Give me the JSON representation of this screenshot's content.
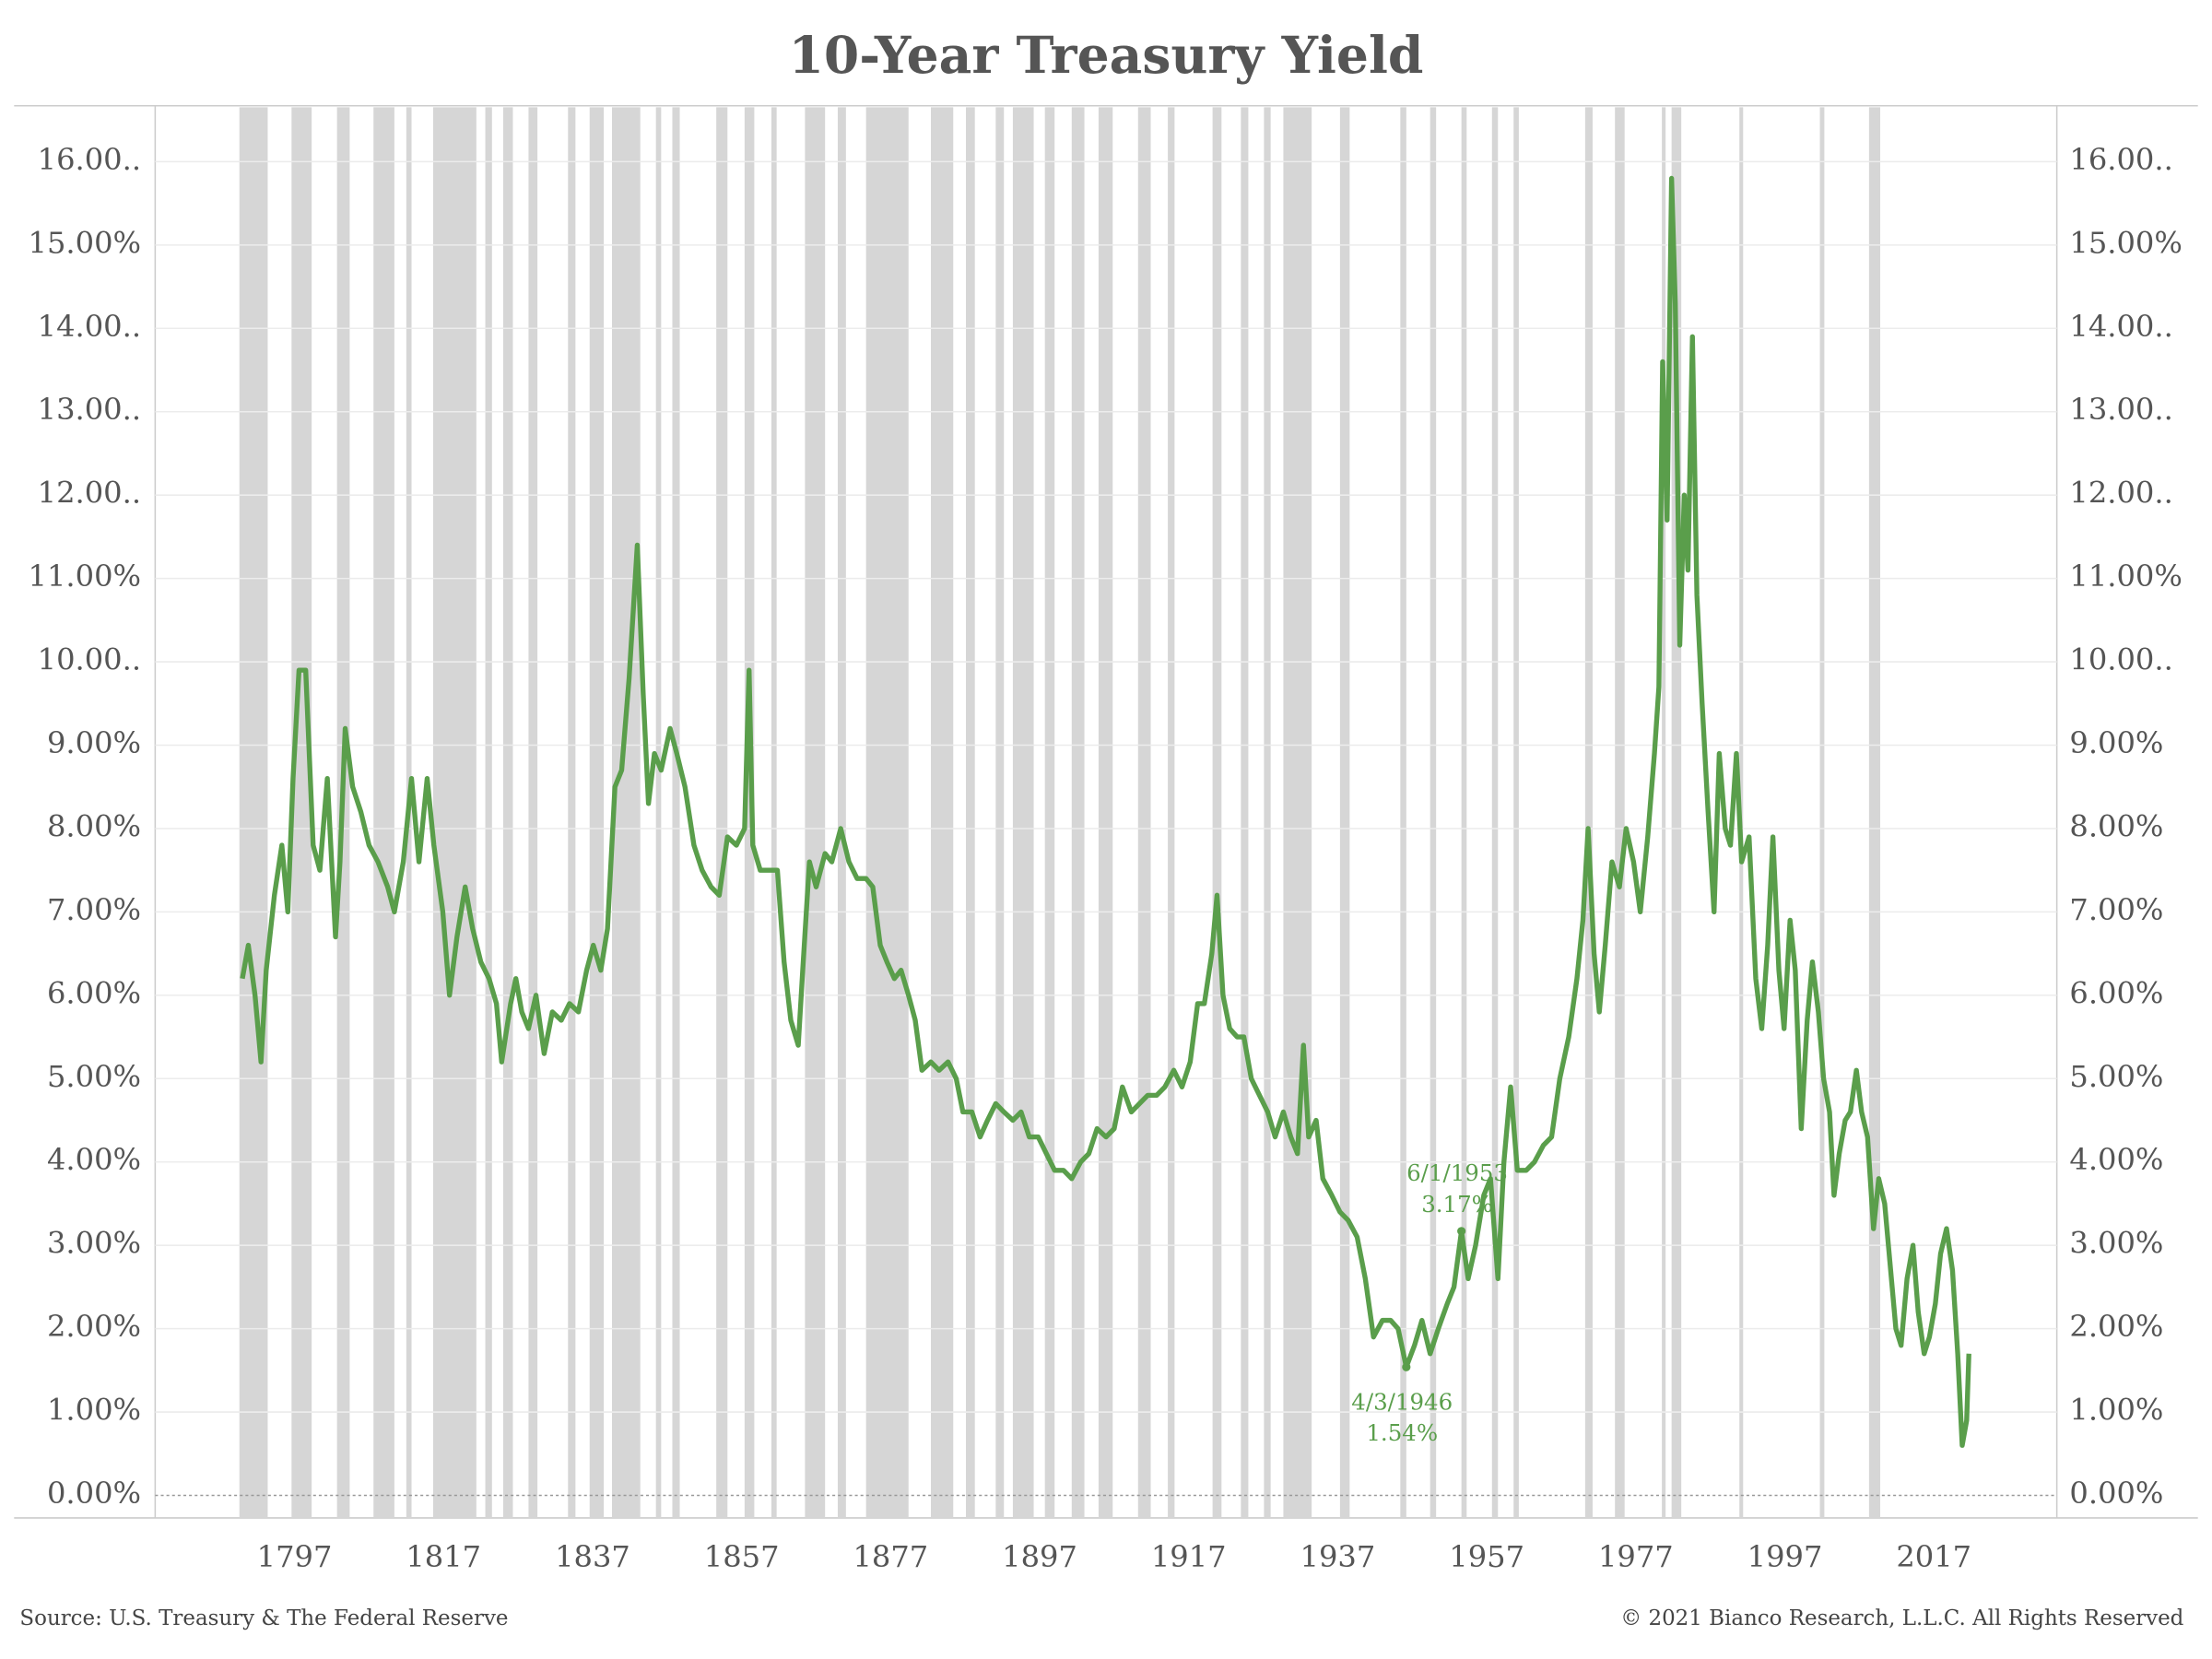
{
  "chart_data": {
    "type": "line",
    "title": "10-Year Treasury Yield",
    "source": "Source: U.S. Treasury & The Federal Reserve",
    "copyright": "© 2021 Bianco Research, L.L.C. All Rights Reserved",
    "color": "#5a9e4b",
    "band_color": "#d6d6d6",
    "xlim": [
      1778.3,
      2033.5
    ],
    "xticks": [
      1797,
      1817,
      1837,
      1857,
      1877,
      1897,
      1917,
      1937,
      1957,
      1977,
      1997,
      2017
    ],
    "ylim": [
      -0.27,
      16.67
    ],
    "yticks": [
      {
        "value": 0,
        "label": "0.00%"
      },
      {
        "value": 1,
        "label": "1.00%"
      },
      {
        "value": 2,
        "label": "2.00%"
      },
      {
        "value": 3,
        "label": "3.00%"
      },
      {
        "value": 4,
        "label": "4.00%"
      },
      {
        "value": 5,
        "label": "5.00%"
      },
      {
        "value": 6,
        "label": "6.00%"
      },
      {
        "value": 7,
        "label": "7.00%"
      },
      {
        "value": 8,
        "label": "8.00%"
      },
      {
        "value": 9,
        "label": "9.00%"
      },
      {
        "value": 10,
        "label": "10.00.."
      },
      {
        "value": 11,
        "label": "11.00%"
      },
      {
        "value": 12,
        "label": "12.00.."
      },
      {
        "value": 13,
        "label": "13.00.."
      },
      {
        "value": 14,
        "label": "14.00.."
      },
      {
        "value": 15,
        "label": "15.00%"
      },
      {
        "value": 16,
        "label": "16.00.."
      }
    ],
    "y2lim": [
      -0.27,
      16.67
    ],
    "y2ticks": [
      {
        "value": 0,
        "label": "0.00%"
      },
      {
        "value": 1,
        "label": "1.00%"
      },
      {
        "value": 2,
        "label": "2.00%"
      },
      {
        "value": 3,
        "label": "3.00%"
      },
      {
        "value": 4,
        "label": "4.00%"
      },
      {
        "value": 5,
        "label": "5.00%"
      },
      {
        "value": 6,
        "label": "6.00%"
      },
      {
        "value": 7,
        "label": "7.00%"
      },
      {
        "value": 8,
        "label": "8.00%"
      },
      {
        "value": 9,
        "label": "9.00%"
      },
      {
        "value": 10,
        "label": "10.00.."
      },
      {
        "value": 11,
        "label": "11.00%"
      },
      {
        "value": 12,
        "label": "12.00.."
      },
      {
        "value": 13,
        "label": "13.00.."
      },
      {
        "value": 14,
        "label": "14.00.."
      },
      {
        "value": 15,
        "label": "15.00%"
      },
      {
        "value": 16,
        "label": "16.00.."
      }
    ],
    "grid": true,
    "recessions": [
      [
        1789.6,
        1793.4
      ],
      [
        1796.6,
        1799.3
      ],
      [
        1802.7,
        1804.4
      ],
      [
        1807.6,
        1810.4
      ],
      [
        1812,
        1812.7
      ],
      [
        1815.6,
        1821.4
      ],
      [
        1822.6,
        1823.5
      ],
      [
        1825,
        1826.3
      ],
      [
        1828.4,
        1829.6
      ],
      [
        1833.7,
        1834.7
      ],
      [
        1836.6,
        1838.5
      ],
      [
        1839.6,
        1843.4
      ],
      [
        1845.5,
        1846.2
      ],
      [
        1847.7,
        1848.7
      ],
      [
        1853.6,
        1855.1
      ],
      [
        1857.4,
        1858.7
      ],
      [
        1861,
        1861.7
      ],
      [
        1865.5,
        1868.2
      ],
      [
        1869.9,
        1871
      ],
      [
        1873.7,
        1879.4
      ],
      [
        1882.4,
        1885.4
      ],
      [
        1887.1,
        1888.3
      ],
      [
        1891.1,
        1892.2
      ],
      [
        1893.4,
        1896.2
      ],
      [
        1897.7,
        1899
      ],
      [
        1901.3,
        1903
      ],
      [
        1904.9,
        1906.8
      ],
      [
        1910.2,
        1911.9
      ],
      [
        1914.2,
        1915.1
      ],
      [
        1920.2,
        1921.4
      ],
      [
        1924,
        1925
      ],
      [
        1927.1,
        1928
      ],
      [
        1929.7,
        1933.5
      ],
      [
        1937.3,
        1938.6
      ],
      [
        1945.4,
        1946.2
      ],
      [
        1949.4,
        1950.2
      ],
      [
        1953.6,
        1954.3
      ],
      [
        1957.7,
        1958.5
      ],
      [
        1960.6,
        1961.3
      ],
      [
        1970.2,
        1971.2
      ],
      [
        1974.2,
        1975.5
      ],
      [
        1980.5,
        1981
      ],
      [
        1981.8,
        1983.1
      ],
      [
        1990.9,
        1991.4
      ],
      [
        2001.7,
        2002.3
      ],
      [
        2008.3,
        2009.8
      ]
    ],
    "annotations": [
      {
        "label": "6/1/1953",
        "value_label": "3.17%",
        "x": 1953.6,
        "y": 3.17
      },
      {
        "label": "4/3/1946",
        "value_label": "1.54%",
        "x": 1946.2,
        "y": 1.54
      }
    ],
    "x": [
      1790.0,
      1790.8,
      1791.7,
      1792.5,
      1793.2,
      1794.3,
      1795.3,
      1796.1,
      1796.8,
      1797.6,
      1798.5,
      1799.5,
      1800.4,
      1801.4,
      1802.5,
      1803.1,
      1803.8,
      1804.8,
      1805.9,
      1807.0,
      1808.2,
      1809.5,
      1810.4,
      1811.6,
      1812.7,
      1813.7,
      1814.8,
      1815.7,
      1816.9,
      1817.8,
      1818.8,
      1819.9,
      1820.9,
      1822.0,
      1823.1,
      1824.1,
      1824.8,
      1826.0,
      1826.7,
      1827.5,
      1828.4,
      1829.4,
      1830.5,
      1831.6,
      1832.8,
      1833.9,
      1835.1,
      1836.2,
      1837.1,
      1838.1,
      1839.0,
      1840.0,
      1840.9,
      1841.9,
      1843.0,
      1843.8,
      1844.5,
      1845.3,
      1846.2,
      1847.4,
      1848.3,
      1849.4,
      1850.6,
      1851.7,
      1852.9,
      1854.0,
      1855.1,
      1856.3,
      1857.4,
      1858.0,
      1858.5,
      1859.5,
      1860.6,
      1861.8,
      1862.7,
      1863.6,
      1864.6,
      1865.2,
      1866.1,
      1867.0,
      1868.2,
      1869.1,
      1870.3,
      1871.4,
      1872.5,
      1873.7,
      1874.6,
      1875.6,
      1876.5,
      1877.5,
      1878.4,
      1879.4,
      1880.3,
      1881.2,
      1882.4,
      1883.5,
      1884.7,
      1885.8,
      1886.7,
      1887.9,
      1889.0,
      1890.0,
      1891.1,
      1892.2,
      1893.4,
      1894.5,
      1895.6,
      1896.8,
      1897.9,
      1899.0,
      1900.2,
      1901.3,
      1902.5,
      1903.6,
      1904.7,
      1905.9,
      1907.0,
      1908.1,
      1909.3,
      1910.4,
      1911.5,
      1912.7,
      1913.8,
      1915.0,
      1916.1,
      1917.2,
      1918.2,
      1919.1,
      1920.1,
      1920.8,
      1921.6,
      1922.5,
      1923.5,
      1924.4,
      1925.4,
      1926.5,
      1927.6,
      1928.6,
      1929.7,
      1930.7,
      1931.6,
      1932.4,
      1933.1,
      1934.1,
      1935.0,
      1936.2,
      1937.3,
      1938.4,
      1939.6,
      1940.7,
      1941.8,
      1943.0,
      1944.1,
      1945.1,
      1946.2,
      1947.3,
      1948.3,
      1949.4,
      1950.5,
      1951.7,
      1952.6,
      1953.6,
      1954.5,
      1955.5,
      1956.6,
      1957.5,
      1958.5,
      1959.3,
      1960.2,
      1961.1,
      1962.3,
      1963.4,
      1964.6,
      1965.7,
      1966.8,
      1968.0,
      1969.1,
      1969.9,
      1970.6,
      1971.4,
      1972.1,
      1972.9,
      1973.8,
      1974.8,
      1975.7,
      1976.7,
      1977.6,
      1978.6,
      1979.5,
      1980.1,
      1980.6,
      1981.2,
      1981.8,
      1982.3,
      1982.9,
      1983.5,
      1984.0,
      1984.6,
      1985.2,
      1985.9,
      1986.7,
      1987.5,
      1988.2,
      1989.0,
      1989.7,
      1990.5,
      1991.2,
      1992.2,
      1993.1,
      1993.9,
      1994.7,
      1995.4,
      1996.2,
      1996.9,
      1997.7,
      1998.4,
      1999.2,
      2000.0,
      2000.7,
      2001.5,
      2002.2,
      2003.0,
      2003.6,
      2004.3,
      2005.1,
      2005.8,
      2006.6,
      2007.3,
      2008.1,
      2008.9,
      2009.6,
      2010.4,
      2011.1,
      2011.9,
      2012.6,
      2013.4,
      2014.2,
      2014.9,
      2015.7,
      2016.4,
      2017.2,
      2017.9,
      2018.7,
      2019.5,
      2020.2,
      2020.8,
      2021.4,
      2021.7
    ],
    "values": [
      6.2,
      6.6,
      6.0,
      5.2,
      6.3,
      7.2,
      7.8,
      7.0,
      8.6,
      9.9,
      9.9,
      7.8,
      7.5,
      8.6,
      6.7,
      7.6,
      9.2,
      8.5,
      8.2,
      7.8,
      7.6,
      7.3,
      7.0,
      7.6,
      8.6,
      7.6,
      8.6,
      7.8,
      7.0,
      6.0,
      6.7,
      7.3,
      6.8,
      6.4,
      6.2,
      5.9,
      5.2,
      5.9,
      6.2,
      5.8,
      5.6,
      6.0,
      5.3,
      5.8,
      5.7,
      5.9,
      5.8,
      6.3,
      6.6,
      6.3,
      6.8,
      8.5,
      8.7,
      9.8,
      11.4,
      9.6,
      8.3,
      8.9,
      8.7,
      9.2,
      8.9,
      8.5,
      7.8,
      7.5,
      7.3,
      7.2,
      7.9,
      7.8,
      8.0,
      9.9,
      7.8,
      7.5,
      7.5,
      7.5,
      6.4,
      5.7,
      5.4,
      6.3,
      7.6,
      7.3,
      7.7,
      7.6,
      8.0,
      7.6,
      7.4,
      7.4,
      7.3,
      6.6,
      6.4,
      6.2,
      6.3,
      6.0,
      5.7,
      5.1,
      5.2,
      5.1,
      5.2,
      5.0,
      4.6,
      4.6,
      4.3,
      4.5,
      4.7,
      4.6,
      4.5,
      4.6,
      4.3,
      4.3,
      4.1,
      3.9,
      3.9,
      3.8,
      4.0,
      4.1,
      4.4,
      4.3,
      4.4,
      4.9,
      4.6,
      4.7,
      4.8,
      4.8,
      4.9,
      5.1,
      4.9,
      5.2,
      5.9,
      5.9,
      6.5,
      7.2,
      6.0,
      5.6,
      5.5,
      5.5,
      5.0,
      4.8,
      4.6,
      4.3,
      4.6,
      4.3,
      4.1,
      5.4,
      4.3,
      4.5,
      3.8,
      3.6,
      3.4,
      3.3,
      3.1,
      2.6,
      1.9,
      2.1,
      2.1,
      2.0,
      1.54,
      1.8,
      2.1,
      1.7,
      2.0,
      2.3,
      2.5,
      3.17,
      2.6,
      3.0,
      3.6,
      3.8,
      2.6,
      4.0,
      4.9,
      3.9,
      3.9,
      4.0,
      4.2,
      4.3,
      5.0,
      5.5,
      6.2,
      6.9,
      8.0,
      6.5,
      5.8,
      6.6,
      7.6,
      7.3,
      8.0,
      7.6,
      7.0,
      7.9,
      8.9,
      9.7,
      13.6,
      11.7,
      15.8,
      14.3,
      10.2,
      12.0,
      11.1,
      13.9,
      10.8,
      9.5,
      8.2,
      7.0,
      8.9,
      8.0,
      7.8,
      8.9,
      7.6,
      7.9,
      6.2,
      5.6,
      6.6,
      7.9,
      6.3,
      5.6,
      6.9,
      6.3,
      4.4,
      5.7,
      6.4,
      5.8,
      5.0,
      4.6,
      3.6,
      4.1,
      4.5,
      4.6,
      5.1,
      4.6,
      4.3,
      3.2,
      3.8,
      3.5,
      2.8,
      2.0,
      1.8,
      2.6,
      3.0,
      2.2,
      1.7,
      1.9,
      2.3,
      2.9,
      3.2,
      2.7,
      1.7,
      0.6,
      0.9,
      1.7
    ]
  }
}
